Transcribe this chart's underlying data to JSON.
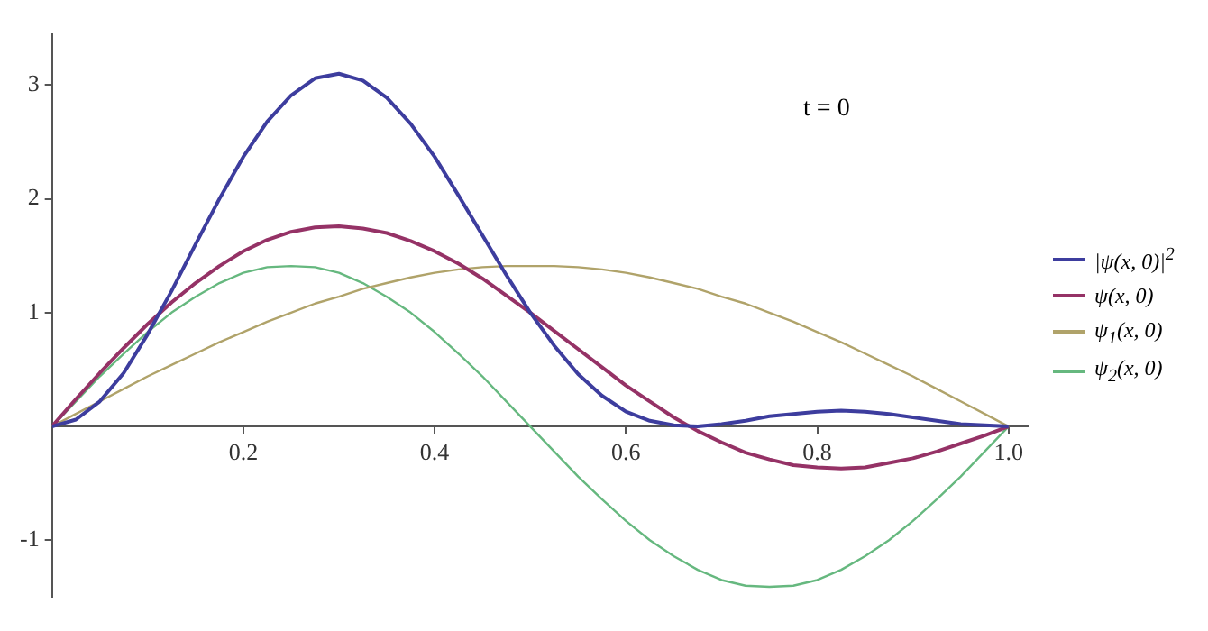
{
  "chart_data": {
    "type": "line",
    "x": [
      0,
      0.025,
      0.05,
      0.075,
      0.1,
      0.125,
      0.15,
      0.175,
      0.2,
      0.225,
      0.25,
      0.275,
      0.3,
      0.325,
      0.35,
      0.375,
      0.4,
      0.425,
      0.45,
      0.475,
      0.5,
      0.525,
      0.55,
      0.575,
      0.6,
      0.625,
      0.65,
      0.675,
      0.7,
      0.725,
      0.75,
      0.775,
      0.8,
      0.825,
      0.85,
      0.875,
      0.9,
      0.925,
      0.95,
      0.975,
      1
    ],
    "series": [
      {
        "name": "|ψ(x, 0)|$^{2}$",
        "color": "#3d3d9e",
        "values": [
          0,
          0.06,
          0.22,
          0.47,
          0.81,
          1.19,
          1.6,
          2.0,
          2.37,
          2.68,
          2.91,
          3.06,
          3.1,
          3.04,
          2.89,
          2.66,
          2.37,
          2.03,
          1.68,
          1.33,
          1.0,
          0.71,
          0.46,
          0.27,
          0.13,
          0.05,
          0.01,
          0,
          0.02,
          0.05,
          0.09,
          0.11,
          0.13,
          0.14,
          0.13,
          0.11,
          0.08,
          0.05,
          0.02,
          0.01,
          0
        ]
      },
      {
        "name": "ψ(x, 0)",
        "color": "#953266",
        "values": [
          0,
          0.24,
          0.47,
          0.69,
          0.9,
          1.09,
          1.26,
          1.41,
          1.54,
          1.64,
          1.71,
          1.75,
          1.76,
          1.74,
          1.7,
          1.63,
          1.54,
          1.43,
          1.3,
          1.15,
          1.0,
          0.84,
          0.68,
          0.52,
          0.36,
          0.22,
          0.08,
          -0.04,
          -0.14,
          -0.23,
          -0.29,
          -0.34,
          -0.36,
          -0.37,
          -0.36,
          -0.32,
          -0.28,
          -0.22,
          -0.15,
          -0.08,
          0
        ]
      },
      {
        "name": "ψ$_{1}$(x, 0)",
        "color": "#b0a36a",
        "values": [
          0,
          0.11,
          0.22,
          0.33,
          0.44,
          0.54,
          0.64,
          0.74,
          0.83,
          0.92,
          1.0,
          1.08,
          1.14,
          1.21,
          1.26,
          1.31,
          1.35,
          1.38,
          1.4,
          1.41,
          1.41,
          1.41,
          1.4,
          1.38,
          1.35,
          1.31,
          1.26,
          1.21,
          1.14,
          1.08,
          1.0,
          0.92,
          0.83,
          0.74,
          0.64,
          0.54,
          0.44,
          0.33,
          0.22,
          0.11,
          0
        ]
      },
      {
        "name": "ψ$_{2}$(x, 0)",
        "color": "#66b87f",
        "values": [
          0,
          0.22,
          0.44,
          0.64,
          0.83,
          1.0,
          1.14,
          1.26,
          1.35,
          1.4,
          1.41,
          1.4,
          1.35,
          1.26,
          1.14,
          1.0,
          0.83,
          0.64,
          0.44,
          0.22,
          0,
          -0.22,
          -0.44,
          -0.64,
          -0.83,
          -1.0,
          -1.14,
          -1.26,
          -1.35,
          -1.4,
          -1.41,
          -1.4,
          -1.35,
          -1.26,
          -1.14,
          -1.0,
          -0.83,
          -0.64,
          -0.44,
          -0.22,
          0
        ]
      }
    ],
    "xlim": [
      0,
      1.02
    ],
    "ylim": [
      -1.5,
      3.45
    ],
    "xticks": [
      0.2,
      0.4,
      0.6,
      0.8,
      {
        "value": 1,
        "label": "1.0"
      }
    ],
    "yticks": [
      -1,
      1,
      2,
      3
    ],
    "annotations": [
      "t = 0"
    ],
    "legend": "right",
    "grid": false,
    "marker": "none",
    "line_style": "solid"
  }
}
